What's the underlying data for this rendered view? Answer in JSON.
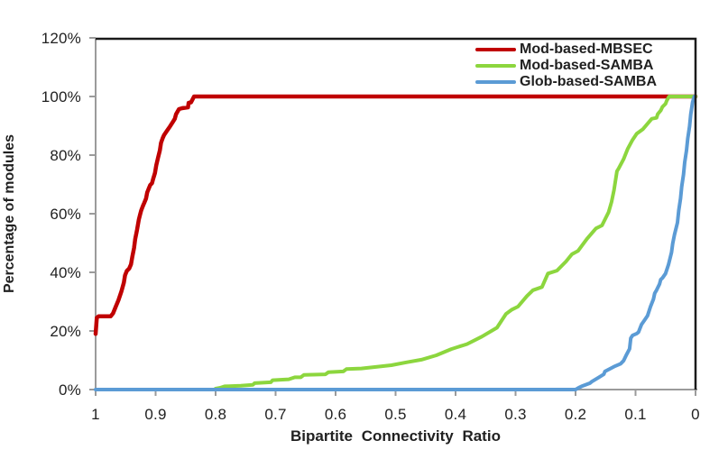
{
  "chart_data": {
    "type": "line",
    "title": "",
    "xlabel": "Bipartite  Connectivity  Ratio",
    "ylabel": "Percentage of modules",
    "x_axis": {
      "min": 0,
      "max": 1,
      "reversed": true,
      "tick_step": 0.1
    },
    "y_axis": {
      "min": 0,
      "max": 120,
      "unit": "%",
      "tick_step": 20
    },
    "x_tick_labels": [
      "1",
      "0.9",
      "0.8",
      "0.7",
      "0.6",
      "0.5",
      "0.4",
      "0.3",
      "0.2",
      "0.1",
      "0"
    ],
    "y_tick_labels": [
      "0%",
      "20%",
      "40%",
      "60%",
      "80%",
      "100%",
      "120%"
    ],
    "grid": false,
    "legend_position": "top-right-inside",
    "colors": {
      "axis": "#9b9b9b",
      "border": "#1a1a1a",
      "text": "#212121",
      "background": "#ffffff"
    },
    "series": [
      {
        "name": "Mod-based-MBSEC",
        "color": "#c00000",
        "stroke_width": 4.5,
        "points": [
          [
            1.0,
            19
          ],
          [
            0.998,
            24.5
          ],
          [
            0.995,
            25
          ],
          [
            0.975,
            25
          ],
          [
            0.971,
            26
          ],
          [
            0.966,
            28.5
          ],
          [
            0.962,
            30.5
          ],
          [
            0.957,
            33.5
          ],
          [
            0.953,
            36.5
          ],
          [
            0.951,
            39
          ],
          [
            0.948,
            40.5
          ],
          [
            0.944,
            41.3
          ],
          [
            0.941,
            42.7
          ],
          [
            0.939,
            45.2
          ],
          [
            0.936,
            48.3
          ],
          [
            0.934,
            51.4
          ],
          [
            0.931,
            54.5
          ],
          [
            0.928,
            58
          ],
          [
            0.926,
            59.6
          ],
          [
            0.924,
            61.1
          ],
          [
            0.921,
            62.7
          ],
          [
            0.919,
            63.7
          ],
          [
            0.916,
            65.2
          ],
          [
            0.914,
            67.3
          ],
          [
            0.911,
            68.8
          ],
          [
            0.909,
            69.8
          ],
          [
            0.906,
            70.4
          ],
          [
            0.904,
            71.9
          ],
          [
            0.901,
            73.9
          ],
          [
            0.899,
            76.5
          ],
          [
            0.896,
            79.1
          ],
          [
            0.893,
            81.6
          ],
          [
            0.891,
            84.2
          ],
          [
            0.888,
            85.9
          ],
          [
            0.886,
            86.8
          ],
          [
            0.881,
            88.3
          ],
          [
            0.876,
            89.8
          ],
          [
            0.871,
            91.4
          ],
          [
            0.868,
            92.4
          ],
          [
            0.866,
            93.9
          ],
          [
            0.863,
            95
          ],
          [
            0.861,
            95.7
          ],
          [
            0.856,
            96
          ],
          [
            0.846,
            96.3
          ],
          [
            0.845,
            97.8
          ],
          [
            0.841,
            98
          ],
          [
            0.839,
            98.8
          ],
          [
            0.836,
            100
          ],
          [
            0.0,
            100
          ]
        ]
      },
      {
        "name": "Mod-based-SAMBA",
        "color": "#8cd63e",
        "stroke_width": 4,
        "points": [
          [
            0.8,
            0.3
          ],
          [
            0.793,
            0.6
          ],
          [
            0.785,
            1.1
          ],
          [
            0.758,
            1.3
          ],
          [
            0.738,
            1.6
          ],
          [
            0.735,
            2.2
          ],
          [
            0.708,
            2.5
          ],
          [
            0.705,
            3.2
          ],
          [
            0.678,
            3.5
          ],
          [
            0.668,
            4.2
          ],
          [
            0.658,
            4.2
          ],
          [
            0.653,
            5
          ],
          [
            0.617,
            5.2
          ],
          [
            0.612,
            5.9
          ],
          [
            0.587,
            6.2
          ],
          [
            0.582,
            7
          ],
          [
            0.557,
            7.2
          ],
          [
            0.507,
            8.3
          ],
          [
            0.482,
            9.3
          ],
          [
            0.457,
            10.2
          ],
          [
            0.432,
            11.7
          ],
          [
            0.407,
            13.8
          ],
          [
            0.381,
            15.5
          ],
          [
            0.356,
            18.1
          ],
          [
            0.331,
            21.1
          ],
          [
            0.316,
            25.8
          ],
          [
            0.306,
            27.3
          ],
          [
            0.296,
            28.3
          ],
          [
            0.281,
            31.9
          ],
          [
            0.271,
            33.9
          ],
          [
            0.256,
            35
          ],
          [
            0.246,
            39.6
          ],
          [
            0.231,
            40.6
          ],
          [
            0.216,
            43.7
          ],
          [
            0.206,
            46.2
          ],
          [
            0.196,
            47.3
          ],
          [
            0.181,
            51.4
          ],
          [
            0.166,
            55
          ],
          [
            0.156,
            56
          ],
          [
            0.145,
            60.5
          ],
          [
            0.14,
            64
          ],
          [
            0.136,
            68
          ],
          [
            0.131,
            74.5
          ],
          [
            0.128,
            75.5
          ],
          [
            0.12,
            78.6
          ],
          [
            0.113,
            82.2
          ],
          [
            0.105,
            85.2
          ],
          [
            0.098,
            87.3
          ],
          [
            0.088,
            88.8
          ],
          [
            0.08,
            90.7
          ],
          [
            0.075,
            91.9
          ],
          [
            0.073,
            92.4
          ],
          [
            0.065,
            92.7
          ],
          [
            0.063,
            94
          ],
          [
            0.058,
            95.2
          ],
          [
            0.055,
            96.5
          ],
          [
            0.05,
            97.5
          ],
          [
            0.048,
            98.6
          ],
          [
            0.044,
            100
          ],
          [
            0.0,
            100
          ]
        ]
      },
      {
        "name": "Glob-based-SAMBA",
        "color": "#5b9bd5",
        "stroke_width": 4,
        "points": [
          [
            1.0,
            0
          ],
          [
            0.2,
            0
          ],
          [
            0.195,
            0.6
          ],
          [
            0.19,
            1.1
          ],
          [
            0.176,
            2.2
          ],
          [
            0.173,
            2.7
          ],
          [
            0.161,
            4.2
          ],
          [
            0.153,
            5.2
          ],
          [
            0.151,
            6.2
          ],
          [
            0.136,
            7.8
          ],
          [
            0.125,
            8.8
          ],
          [
            0.12,
            9.8
          ],
          [
            0.115,
            11.9
          ],
          [
            0.11,
            13.9
          ],
          [
            0.108,
            17.5
          ],
          [
            0.105,
            18.5
          ],
          [
            0.098,
            19.1
          ],
          [
            0.095,
            19.6
          ],
          [
            0.09,
            22.2
          ],
          [
            0.085,
            23.7
          ],
          [
            0.08,
            25.2
          ],
          [
            0.075,
            28.3
          ],
          [
            0.07,
            30.9
          ],
          [
            0.068,
            32.9
          ],
          [
            0.065,
            33.9
          ],
          [
            0.06,
            36
          ],
          [
            0.058,
            37.5
          ],
          [
            0.055,
            38.1
          ],
          [
            0.05,
            39.6
          ],
          [
            0.045,
            42.7
          ],
          [
            0.04,
            46.8
          ],
          [
            0.038,
            49.8
          ],
          [
            0.035,
            52.9
          ],
          [
            0.03,
            57
          ],
          [
            0.028,
            61.1
          ],
          [
            0.025,
            65.2
          ],
          [
            0.023,
            69.3
          ],
          [
            0.02,
            73.4
          ],
          [
            0.018,
            77.5
          ],
          [
            0.015,
            81.6
          ],
          [
            0.013,
            85.7
          ],
          [
            0.01,
            89.8
          ],
          [
            0.008,
            93.9
          ],
          [
            0.005,
            98
          ],
          [
            0.002,
            100
          ]
        ]
      }
    ]
  }
}
